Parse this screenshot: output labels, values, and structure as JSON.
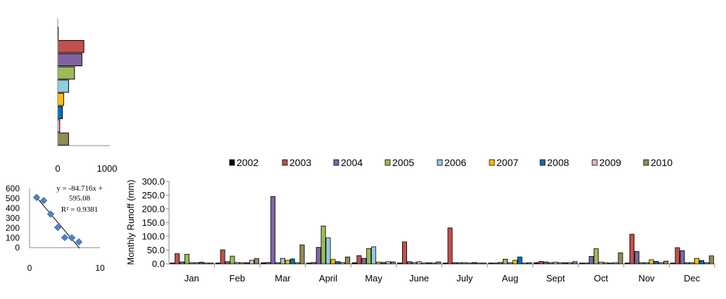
{
  "chart_data": [
    {
      "type": "bar",
      "orientation": "horizontal",
      "series": [
        {
          "name": "2002",
          "value": 10,
          "color": "#000000"
        },
        {
          "name": "2003",
          "value": 530,
          "color": "#C0504D"
        },
        {
          "name": "2004",
          "value": 490,
          "color": "#8064A2"
        },
        {
          "name": "2005",
          "value": 340,
          "color": "#9BBB59"
        },
        {
          "name": "2006",
          "value": 220,
          "color": "#93CDDD"
        },
        {
          "name": "2007",
          "value": 120,
          "color": "#FFC000"
        },
        {
          "name": "2008",
          "value": 95,
          "color": "#0070C0"
        },
        {
          "name": "2009",
          "value": 40,
          "color": "#E6B9B8"
        },
        {
          "name": "2010",
          "value": 220,
          "color": "#948A54"
        }
      ],
      "xlim": [
        0,
        1000
      ],
      "xticks": [
        "0",
        "1000"
      ],
      "grid": false
    },
    {
      "type": "scatter",
      "points": [
        [
          1,
          510
        ],
        [
          2,
          478
        ],
        [
          3,
          340
        ],
        [
          4,
          205
        ],
        [
          5,
          103
        ],
        [
          6,
          100
        ],
        [
          7,
          58
        ]
      ],
      "trendline": {
        "slope": -84.716,
        "intercept": 595.08
      },
      "annotation": [
        "y = -84.716x +",
        "595.08",
        "R² = 0.9381"
      ],
      "xlim": [
        0,
        10
      ],
      "ylim": [
        0,
        600
      ],
      "xticks": [
        "0",
        "10"
      ],
      "yticks": [
        "0",
        "100",
        "200",
        "300",
        "400",
        "500",
        "600"
      ],
      "marker_color": "#4F81BD",
      "grid": false
    },
    {
      "type": "bar",
      "ylabel": "Monthly  Runoff (mm)",
      "ylim": [
        0,
        300
      ],
      "yticks": [
        "0.0",
        "50.0",
        "100.0",
        "150.0",
        "200.0",
        "250.0",
        "300.0"
      ],
      "categories": [
        "Jan",
        "Feb",
        "Mar",
        "April",
        "May",
        "June",
        "July",
        "Aug",
        "Sept",
        "Oct",
        "Nov",
        "Dec"
      ],
      "legend_position": "top",
      "grid": false,
      "series": [
        {
          "name": "2002",
          "color": "#000000",
          "values": [
            3,
            3,
            4,
            3,
            4,
            3,
            3,
            3,
            4,
            3,
            3,
            3
          ]
        },
        {
          "name": "2003",
          "color": "#C0504D",
          "values": [
            37,
            51,
            5,
            5,
            30,
            80,
            131,
            3,
            9,
            3,
            108,
            59
          ]
        },
        {
          "name": "2004",
          "color": "#8064A2",
          "values": [
            7,
            8,
            245,
            60,
            20,
            8,
            4,
            5,
            7,
            27,
            45,
            48
          ]
        },
        {
          "name": "2005",
          "color": "#9BBB59",
          "values": [
            35,
            28,
            4,
            138,
            56,
            5,
            4,
            17,
            4,
            55,
            4,
            4
          ]
        },
        {
          "name": "2006",
          "color": "#93CDDD",
          "values": [
            4,
            5,
            20,
            95,
            62,
            8,
            4,
            4,
            6,
            6,
            4,
            4
          ]
        },
        {
          "name": "2007",
          "color": "#FFC000",
          "values": [
            4,
            4,
            13,
            16,
            6,
            3,
            3,
            13,
            4,
            4,
            15,
            20
          ]
        },
        {
          "name": "2008",
          "color": "#0070C0",
          "values": [
            6,
            4,
            18,
            8,
            5,
            4,
            5,
            25,
            4,
            3,
            9,
            12
          ]
        },
        {
          "name": "2009",
          "color": "#E6B9B8",
          "values": [
            3,
            13,
            4,
            5,
            8,
            3,
            3,
            3,
            4,
            4,
            4,
            4
          ]
        },
        {
          "name": "2010",
          "color": "#948A54",
          "values": [
            3,
            19,
            69,
            25,
            7,
            7,
            3,
            4,
            8,
            40,
            10,
            29
          ]
        }
      ]
    }
  ]
}
